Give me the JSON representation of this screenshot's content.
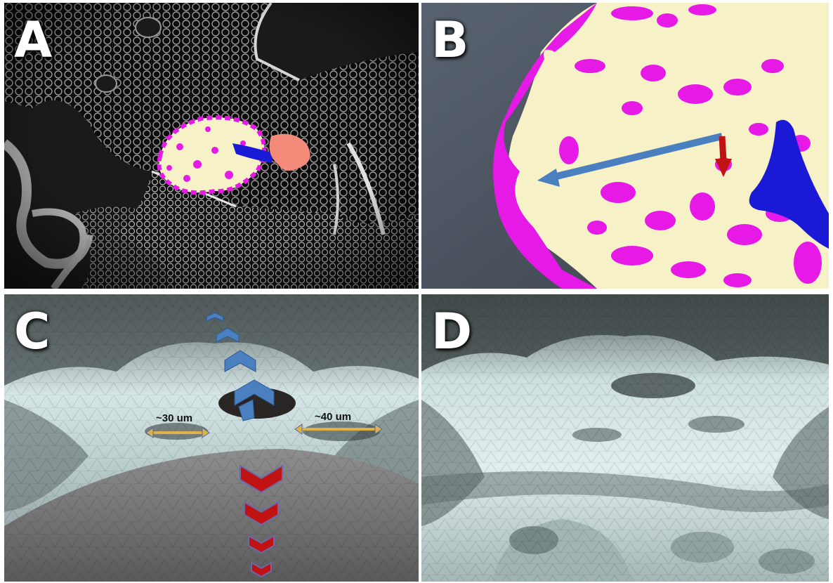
{
  "panels": {
    "a": {
      "label": "A"
    },
    "b": {
      "label": "B"
    },
    "c": {
      "label": "C",
      "measure_left": "~30 um",
      "measure_right": "~40 um"
    },
    "d": {
      "label": "D"
    }
  },
  "colors": {
    "bone": "#f7f1c8",
    "pink": "#e619e6",
    "vessel": "#1a1ad6",
    "salmon": "#f48a7a",
    "arrow_blue": "#4a7fc0",
    "arrow_red": "#c01212",
    "surface": "#c9dcdc",
    "measure": "#e0b14a"
  }
}
